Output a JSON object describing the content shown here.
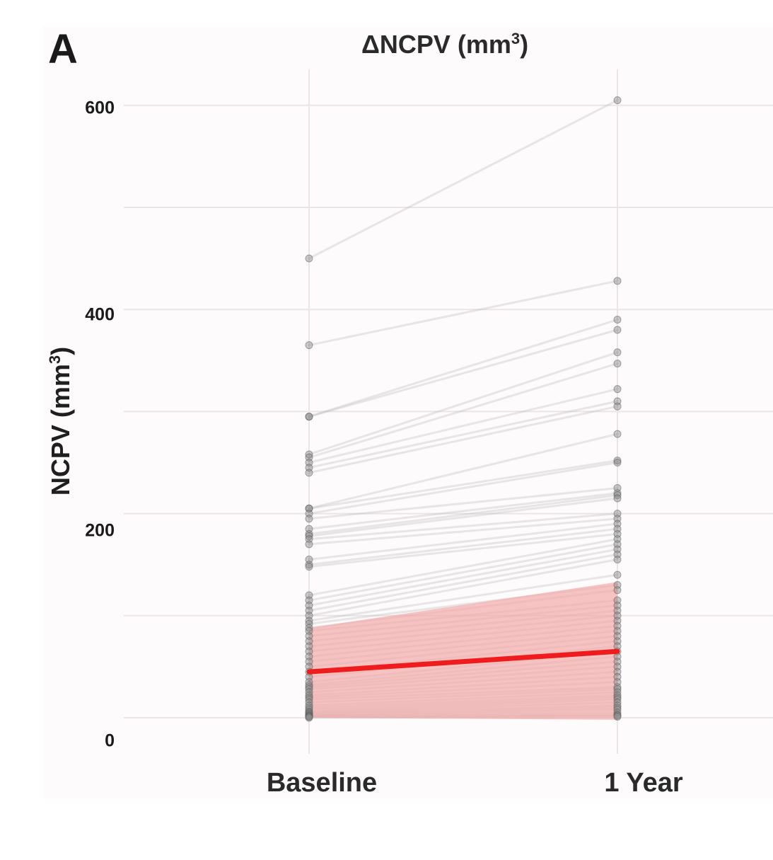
{
  "panel_label": "A",
  "chart_data": {
    "type": "line",
    "title": "ΔNCPV (mm",
    "title_sup": "3",
    "title_suffix": ")",
    "ylabel": "NCPV (mm",
    "ylabel_sup": "3",
    "ylabel_suffix": ")",
    "categories": [
      "Baseline",
      "1 Year"
    ],
    "ylim": [
      -10,
      630
    ],
    "yticks": [
      0,
      200,
      400,
      600
    ],
    "grid": true,
    "pairs": [
      [
        450,
        605
      ],
      [
        365,
        428
      ],
      [
        295,
        390
      ],
      [
        295,
        380
      ],
      [
        258,
        358
      ],
      [
        255,
        347
      ],
      [
        250,
        322
      ],
      [
        245,
        310
      ],
      [
        240,
        305
      ],
      [
        205,
        278
      ],
      [
        205,
        252
      ],
      [
        200,
        250
      ],
      [
        195,
        225
      ],
      [
        185,
        220
      ],
      [
        180,
        218
      ],
      [
        178,
        215
      ],
      [
        175,
        200
      ],
      [
        170,
        195
      ],
      [
        155,
        190
      ],
      [
        150,
        185
      ],
      [
        148,
        180
      ],
      [
        120,
        175
      ],
      [
        115,
        170
      ],
      [
        110,
        165
      ],
      [
        105,
        160
      ],
      [
        100,
        155
      ],
      [
        95,
        140
      ],
      [
        92,
        130
      ],
      [
        88,
        125
      ],
      [
        85,
        115
      ],
      [
        80,
        110
      ],
      [
        75,
        105
      ],
      [
        70,
        100
      ],
      [
        65,
        95
      ],
      [
        60,
        90
      ],
      [
        55,
        85
      ],
      [
        50,
        80
      ],
      [
        45,
        75
      ],
      [
        40,
        70
      ],
      [
        35,
        65
      ],
      [
        32,
        60
      ],
      [
        30,
        55
      ],
      [
        28,
        50
      ],
      [
        25,
        45
      ],
      [
        22,
        40
      ],
      [
        20,
        35
      ],
      [
        18,
        30
      ],
      [
        15,
        28
      ],
      [
        12,
        25
      ],
      [
        10,
        22
      ],
      [
        8,
        20
      ],
      [
        6,
        18
      ],
      [
        5,
        15
      ],
      [
        4,
        12
      ],
      [
        3,
        10
      ],
      [
        2,
        8
      ],
      [
        2,
        5
      ],
      [
        1,
        3
      ],
      [
        1,
        2
      ],
      [
        0,
        1
      ]
    ],
    "mean_line": [
      45,
      65
    ],
    "ci_band": {
      "lower": [
        0,
        -2
      ],
      "upper": [
        88,
        133
      ]
    },
    "colors": {
      "mean": "#ee1c1c",
      "band": "#f3aaaa",
      "individual": "#bdbdbd",
      "points": "#8a8a8a",
      "grid": "#ece4e6"
    }
  }
}
